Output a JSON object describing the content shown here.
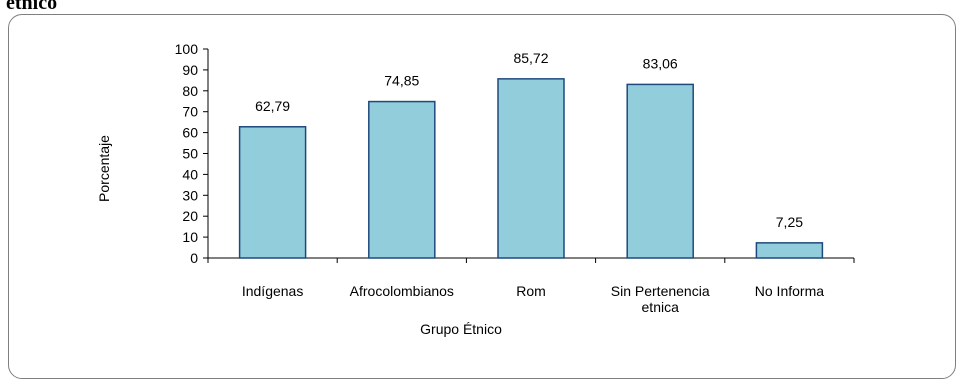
{
  "page": {
    "heading_fragment": "etnico"
  },
  "chart_data": {
    "type": "bar",
    "categories": [
      [
        "Indígenas"
      ],
      [
        "Afrocolombianos"
      ],
      [
        "Rom"
      ],
      [
        "Sin Pertenencia",
        "etnica"
      ],
      [
        "No Informa"
      ]
    ],
    "values": [
      62.79,
      74.85,
      85.72,
      83.06,
      7.25
    ],
    "data_labels": [
      "62,79",
      "74,85",
      "85,72",
      "83,06",
      "7,25"
    ],
    "xlabel": "Grupo Étnico",
    "ylabel": "Porcentaje",
    "ylim": [
      0,
      100
    ],
    "yticks": [
      0,
      10,
      20,
      30,
      40,
      50,
      60,
      70,
      80,
      90,
      100
    ],
    "grid": false,
    "legend": "none",
    "colors": {
      "bar_fill": "#92CDDC",
      "bar_stroke": "#1F497D",
      "axis": "#000000",
      "frame": "#7F7F7F"
    }
  }
}
